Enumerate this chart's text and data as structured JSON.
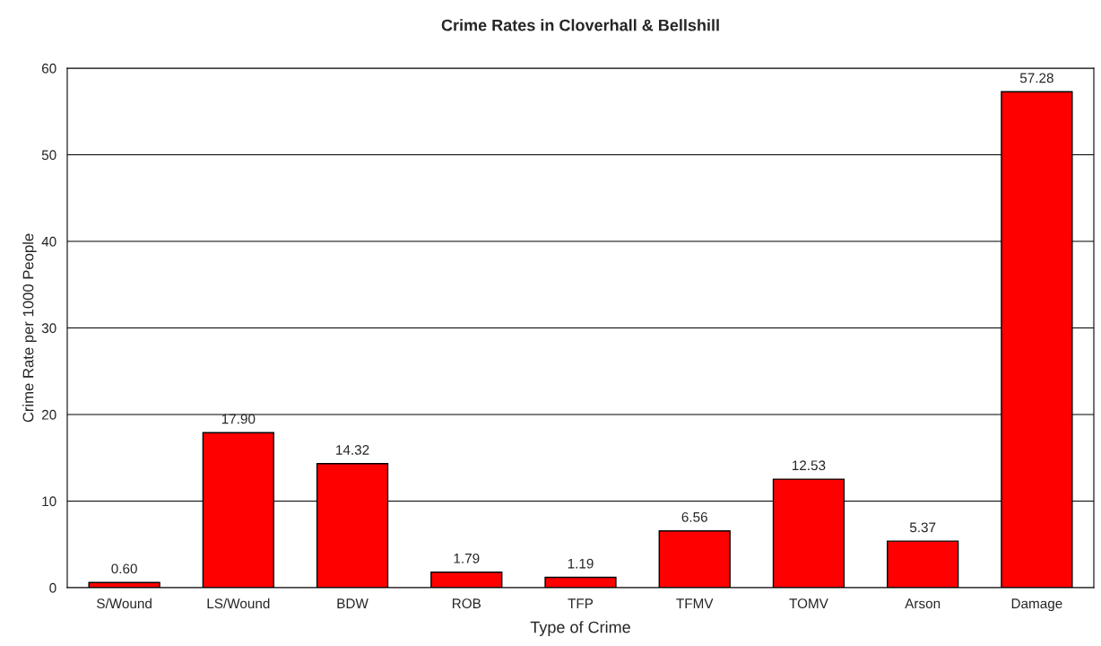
{
  "chart_data": {
    "type": "bar",
    "title": "Crime Rates in Cloverhall & Bellshill",
    "xlabel": "Type of Crime",
    "ylabel": "Crime Rate per 1000 People",
    "categories": [
      "S/Wound",
      "LS/Wound",
      "BDW",
      "ROB",
      "TFP",
      "TFMV",
      "TOMV",
      "Arson",
      "Damage"
    ],
    "values": [
      0.6,
      17.9,
      14.32,
      1.79,
      1.19,
      6.56,
      12.53,
      5.37,
      57.28
    ],
    "value_labels": [
      "0.60",
      "17.90",
      "14.32",
      "1.79",
      "1.19",
      "6.56",
      "12.53",
      "5.37",
      "57.28"
    ],
    "color": "#ff0000",
    "ylim": [
      0,
      60
    ],
    "yticks": [
      0,
      10,
      20,
      30,
      40,
      50,
      60
    ],
    "grid": "y",
    "legend": false
  }
}
